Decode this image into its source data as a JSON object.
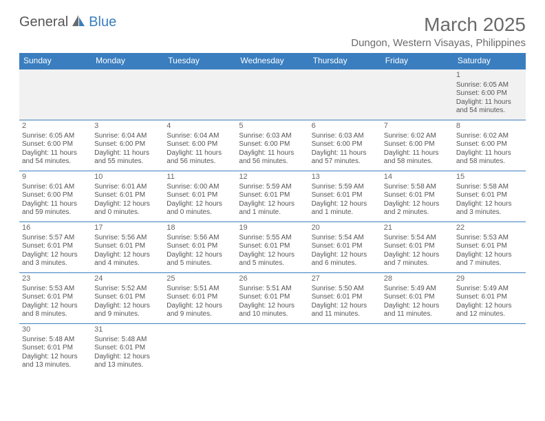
{
  "logo": {
    "text1": "General",
    "text2": "Blue"
  },
  "title": "March 2025",
  "location": "Dungon, Western Visayas, Philippines",
  "colors": {
    "header_bg": "#3a7ebf",
    "header_text": "#ffffff",
    "cell_border": "#3a7ebf",
    "text": "#555555",
    "first_row_bg": "#f1f1f1"
  },
  "weekdays": [
    "Sunday",
    "Monday",
    "Tuesday",
    "Wednesday",
    "Thursday",
    "Friday",
    "Saturday"
  ],
  "weeks": [
    [
      null,
      null,
      null,
      null,
      null,
      null,
      {
        "n": "1",
        "sr": "Sunrise: 6:05 AM",
        "ss": "Sunset: 6:00 PM",
        "dl": "Daylight: 11 hours and 54 minutes."
      }
    ],
    [
      {
        "n": "2",
        "sr": "Sunrise: 6:05 AM",
        "ss": "Sunset: 6:00 PM",
        "dl": "Daylight: 11 hours and 54 minutes."
      },
      {
        "n": "3",
        "sr": "Sunrise: 6:04 AM",
        "ss": "Sunset: 6:00 PM",
        "dl": "Daylight: 11 hours and 55 minutes."
      },
      {
        "n": "4",
        "sr": "Sunrise: 6:04 AM",
        "ss": "Sunset: 6:00 PM",
        "dl": "Daylight: 11 hours and 56 minutes."
      },
      {
        "n": "5",
        "sr": "Sunrise: 6:03 AM",
        "ss": "Sunset: 6:00 PM",
        "dl": "Daylight: 11 hours and 56 minutes."
      },
      {
        "n": "6",
        "sr": "Sunrise: 6:03 AM",
        "ss": "Sunset: 6:00 PM",
        "dl": "Daylight: 11 hours and 57 minutes."
      },
      {
        "n": "7",
        "sr": "Sunrise: 6:02 AM",
        "ss": "Sunset: 6:00 PM",
        "dl": "Daylight: 11 hours and 58 minutes."
      },
      {
        "n": "8",
        "sr": "Sunrise: 6:02 AM",
        "ss": "Sunset: 6:00 PM",
        "dl": "Daylight: 11 hours and 58 minutes."
      }
    ],
    [
      {
        "n": "9",
        "sr": "Sunrise: 6:01 AM",
        "ss": "Sunset: 6:00 PM",
        "dl": "Daylight: 11 hours and 59 minutes."
      },
      {
        "n": "10",
        "sr": "Sunrise: 6:01 AM",
        "ss": "Sunset: 6:01 PM",
        "dl": "Daylight: 12 hours and 0 minutes."
      },
      {
        "n": "11",
        "sr": "Sunrise: 6:00 AM",
        "ss": "Sunset: 6:01 PM",
        "dl": "Daylight: 12 hours and 0 minutes."
      },
      {
        "n": "12",
        "sr": "Sunrise: 5:59 AM",
        "ss": "Sunset: 6:01 PM",
        "dl": "Daylight: 12 hours and 1 minute."
      },
      {
        "n": "13",
        "sr": "Sunrise: 5:59 AM",
        "ss": "Sunset: 6:01 PM",
        "dl": "Daylight: 12 hours and 1 minute."
      },
      {
        "n": "14",
        "sr": "Sunrise: 5:58 AM",
        "ss": "Sunset: 6:01 PM",
        "dl": "Daylight: 12 hours and 2 minutes."
      },
      {
        "n": "15",
        "sr": "Sunrise: 5:58 AM",
        "ss": "Sunset: 6:01 PM",
        "dl": "Daylight: 12 hours and 3 minutes."
      }
    ],
    [
      {
        "n": "16",
        "sr": "Sunrise: 5:57 AM",
        "ss": "Sunset: 6:01 PM",
        "dl": "Daylight: 12 hours and 3 minutes."
      },
      {
        "n": "17",
        "sr": "Sunrise: 5:56 AM",
        "ss": "Sunset: 6:01 PM",
        "dl": "Daylight: 12 hours and 4 minutes."
      },
      {
        "n": "18",
        "sr": "Sunrise: 5:56 AM",
        "ss": "Sunset: 6:01 PM",
        "dl": "Daylight: 12 hours and 5 minutes."
      },
      {
        "n": "19",
        "sr": "Sunrise: 5:55 AM",
        "ss": "Sunset: 6:01 PM",
        "dl": "Daylight: 12 hours and 5 minutes."
      },
      {
        "n": "20",
        "sr": "Sunrise: 5:54 AM",
        "ss": "Sunset: 6:01 PM",
        "dl": "Daylight: 12 hours and 6 minutes."
      },
      {
        "n": "21",
        "sr": "Sunrise: 5:54 AM",
        "ss": "Sunset: 6:01 PM",
        "dl": "Daylight: 12 hours and 7 minutes."
      },
      {
        "n": "22",
        "sr": "Sunrise: 5:53 AM",
        "ss": "Sunset: 6:01 PM",
        "dl": "Daylight: 12 hours and 7 minutes."
      }
    ],
    [
      {
        "n": "23",
        "sr": "Sunrise: 5:53 AM",
        "ss": "Sunset: 6:01 PM",
        "dl": "Daylight: 12 hours and 8 minutes."
      },
      {
        "n": "24",
        "sr": "Sunrise: 5:52 AM",
        "ss": "Sunset: 6:01 PM",
        "dl": "Daylight: 12 hours and 9 minutes."
      },
      {
        "n": "25",
        "sr": "Sunrise: 5:51 AM",
        "ss": "Sunset: 6:01 PM",
        "dl": "Daylight: 12 hours and 9 minutes."
      },
      {
        "n": "26",
        "sr": "Sunrise: 5:51 AM",
        "ss": "Sunset: 6:01 PM",
        "dl": "Daylight: 12 hours and 10 minutes."
      },
      {
        "n": "27",
        "sr": "Sunrise: 5:50 AM",
        "ss": "Sunset: 6:01 PM",
        "dl": "Daylight: 12 hours and 11 minutes."
      },
      {
        "n": "28",
        "sr": "Sunrise: 5:49 AM",
        "ss": "Sunset: 6:01 PM",
        "dl": "Daylight: 12 hours and 11 minutes."
      },
      {
        "n": "29",
        "sr": "Sunrise: 5:49 AM",
        "ss": "Sunset: 6:01 PM",
        "dl": "Daylight: 12 hours and 12 minutes."
      }
    ],
    [
      {
        "n": "30",
        "sr": "Sunrise: 5:48 AM",
        "ss": "Sunset: 6:01 PM",
        "dl": "Daylight: 12 hours and 13 minutes."
      },
      {
        "n": "31",
        "sr": "Sunrise: 5:48 AM",
        "ss": "Sunset: 6:01 PM",
        "dl": "Daylight: 12 hours and 13 minutes."
      },
      null,
      null,
      null,
      null,
      null
    ]
  ]
}
